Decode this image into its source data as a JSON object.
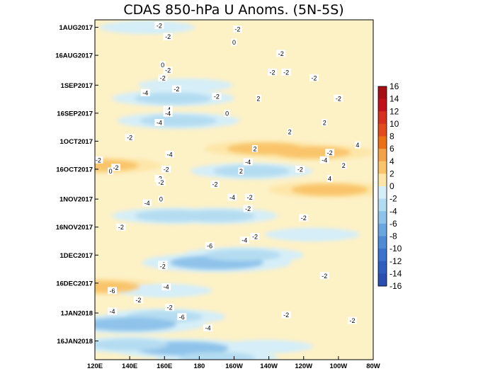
{
  "chart_data": {
    "type": "heatmap",
    "title": "CDAS 850-hPa U Anoms. (5N-5S)",
    "x_ticks": [
      "120E",
      "140E",
      "160E",
      "180",
      "160W",
      "140W",
      "120W",
      "100W",
      "80W"
    ],
    "x_range_lon": [
      120,
      280
    ],
    "y_ticks": [
      "1AUG2017",
      "16AUG2017",
      "1SEP2017",
      "16SEP2017",
      "1OCT2017",
      "16OCT2017",
      "1NOV2017",
      "16NOV2017",
      "1DEC2017",
      "16DEC2017",
      "1JAN2018",
      "16JAN2018"
    ],
    "y_range": [
      "2017-07-28",
      "2018-01-26"
    ],
    "colorbar": {
      "levels": [
        16,
        14,
        12,
        10,
        8,
        6,
        4,
        2,
        0,
        -2,
        -4,
        -6,
        -8,
        -10,
        -12,
        -14,
        -16
      ],
      "colors": {
        "16": "#a50f15",
        "14": "#c1121b",
        "12": "#d7301f",
        "10": "#e34a1c",
        "8": "#ec7014",
        "6": "#f4a24a",
        "4": "#f9c46a",
        "2": "#fde6a8",
        "-2": "#d6eef8",
        "-4": "#b4dcf1",
        "-6": "#8fc3ea",
        "-8": "#6aa6e0",
        "-10": "#4e8ad6",
        "-12": "#3b72cb",
        "-14": "#2f5fbe",
        "-16": "#2a4fb0"
      }
    },
    "anomaly_features": [
      {
        "lon": 150,
        "date": "2017-08-01",
        "value": -2
      },
      {
        "lon": 172,
        "date": "2017-09-01",
        "value": -2
      },
      {
        "lon": 165,
        "date": "2017-09-08",
        "value": -4
      },
      {
        "lon": 168,
        "date": "2017-09-20",
        "value": -4
      },
      {
        "lon": 218,
        "date": "2017-10-05",
        "value": 4
      },
      {
        "lon": 245,
        "date": "2017-10-07",
        "value": 4
      },
      {
        "lon": 123,
        "date": "2017-10-14",
        "value": 4
      },
      {
        "lon": 210,
        "date": "2017-10-17",
        "value": -4
      },
      {
        "lon": 255,
        "date": "2017-10-27",
        "value": 4
      },
      {
        "lon": 165,
        "date": "2017-11-10",
        "value": -4
      },
      {
        "lon": 190,
        "date": "2017-11-10",
        "value": -4
      },
      {
        "lon": 245,
        "date": "2017-11-20",
        "value": -2
      },
      {
        "lon": 190,
        "date": "2017-12-05",
        "value": -6
      },
      {
        "lon": 205,
        "date": "2017-12-01",
        "value": -4
      },
      {
        "lon": 124,
        "date": "2017-12-18",
        "value": 4
      },
      {
        "lon": 160,
        "date": "2017-12-20",
        "value": -2
      },
      {
        "lon": 160,
        "date": "2018-01-03",
        "value": -4
      },
      {
        "lon": 140,
        "date": "2018-01-07",
        "value": -6
      },
      {
        "lon": 170,
        "date": "2018-01-20",
        "value": -6
      },
      {
        "lon": 140,
        "date": "2018-01-18",
        "value": -4
      },
      {
        "lon": 190,
        "date": "2018-01-25",
        "value": -4
      },
      {
        "lon": 218,
        "date": "2018-01-19",
        "value": -2
      }
    ],
    "contour_labels": [
      {
        "text": "-2",
        "lon": 157,
        "date": "2017-07-31"
      },
      {
        "text": "-2",
        "lon": 202,
        "date": "2017-08-02"
      },
      {
        "text": "-2",
        "lon": 162,
        "date": "2017-08-06"
      },
      {
        "text": "0",
        "lon": 200,
        "date": "2017-08-09"
      },
      {
        "text": "-2",
        "lon": 227,
        "date": "2017-08-15"
      },
      {
        "text": "0",
        "lon": 159,
        "date": "2017-08-21"
      },
      {
        "text": "-2",
        "lon": 162,
        "date": "2017-08-24"
      },
      {
        "text": "-2",
        "lon": 230,
        "date": "2017-08-25"
      },
      {
        "text": "-2",
        "lon": 246,
        "date": "2017-08-28"
      },
      {
        "text": "-2",
        "lon": 222,
        "date": "2017-08-25"
      },
      {
        "text": "-2",
        "lon": 159,
        "date": "2017-08-28"
      },
      {
        "text": "-2",
        "lon": 167,
        "date": "2017-09-03"
      },
      {
        "text": "-4",
        "lon": 149,
        "date": "2017-09-05"
      },
      {
        "text": "-2",
        "lon": 190,
        "date": "2017-09-07"
      },
      {
        "text": "2",
        "lon": 214,
        "date": "2017-09-08"
      },
      {
        "text": "-2",
        "lon": 260,
        "date": "2017-09-08"
      },
      {
        "text": "-4",
        "lon": 162,
        "date": "2017-09-14"
      },
      {
        "text": "-4",
        "lon": 162,
        "date": "2017-09-16"
      },
      {
        "text": "0",
        "lon": 196,
        "date": "2017-09-16"
      },
      {
        "text": "-4",
        "lon": 157,
        "date": "2017-09-21"
      },
      {
        "text": "2",
        "lon": 252,
        "date": "2017-09-21"
      },
      {
        "text": "2",
        "lon": 232,
        "date": "2017-09-26"
      },
      {
        "text": "-2",
        "lon": 140,
        "date": "2017-09-29"
      },
      {
        "text": "4",
        "lon": 271,
        "date": "2017-10-03"
      },
      {
        "text": "2",
        "lon": 212,
        "date": "2017-10-05"
      },
      {
        "text": "-4",
        "lon": 163,
        "date": "2017-10-08"
      },
      {
        "text": "-2",
        "lon": 255,
        "date": "2017-10-07"
      },
      {
        "text": "-2",
        "lon": 122,
        "date": "2017-10-11"
      },
      {
        "text": "2",
        "lon": 204,
        "date": "2017-10-17"
      },
      {
        "text": "-4",
        "lon": 208,
        "date": "2017-10-12"
      },
      {
        "text": "-4",
        "lon": 252,
        "date": "2017-10-11"
      },
      {
        "text": "-2",
        "lon": 132,
        "date": "2017-10-15"
      },
      {
        "text": "0",
        "lon": 129,
        "date": "2017-10-17"
      },
      {
        "text": "-2",
        "lon": 161,
        "date": "2017-10-16"
      },
      {
        "text": "-2",
        "lon": 238,
        "date": "2017-10-16"
      },
      {
        "text": "2",
        "lon": 263,
        "date": "2017-10-14"
      },
      {
        "text": "-2",
        "lon": 157,
        "date": "2017-10-21"
      },
      {
        "text": "-2",
        "lon": 158,
        "date": "2017-10-23"
      },
      {
        "text": "-2",
        "lon": 189,
        "date": "2017-10-24"
      },
      {
        "text": "4",
        "lon": 255,
        "date": "2017-10-21"
      },
      {
        "text": "-4",
        "lon": 199,
        "date": "2017-10-31"
      },
      {
        "text": "-2",
        "lon": 209,
        "date": "2017-10-31"
      },
      {
        "text": "-4",
        "lon": 150,
        "date": "2017-11-03"
      },
      {
        "text": "0",
        "lon": 158,
        "date": "2017-11-01"
      },
      {
        "text": "-2",
        "lon": 208,
        "date": "2017-11-06"
      },
      {
        "text": "-2",
        "lon": 135,
        "date": "2017-11-16"
      },
      {
        "text": "-2",
        "lon": 240,
        "date": "2017-11-11"
      },
      {
        "text": "-6",
        "lon": 186,
        "date": "2017-11-26"
      },
      {
        "text": "-4",
        "lon": 206,
        "date": "2017-11-23"
      },
      {
        "text": "-2",
        "lon": 212,
        "date": "2017-11-21"
      },
      {
        "text": "-2",
        "lon": 159,
        "date": "2017-12-06"
      },
      {
        "text": "-2",
        "lon": 159,
        "date": "2017-12-07"
      },
      {
        "text": "-2",
        "lon": 252,
        "date": "2017-12-12"
      },
      {
        "text": "-6",
        "lon": 130,
        "date": "2017-12-20"
      },
      {
        "text": "-4",
        "lon": 161,
        "date": "2017-12-18"
      },
      {
        "text": "-2",
        "lon": 145,
        "date": "2017-12-25"
      },
      {
        "text": "-4",
        "lon": 130,
        "date": "2017-12-31"
      },
      {
        "text": "-2",
        "lon": 163,
        "date": "2017-12-29"
      },
      {
        "text": "-6",
        "lon": 170,
        "date": "2018-01-03"
      },
      {
        "text": "-4",
        "lon": 185,
        "date": "2018-01-09"
      },
      {
        "text": "-2",
        "lon": 230,
        "date": "2018-01-02"
      },
      {
        "text": "-2",
        "lon": 268,
        "date": "2018-01-05"
      }
    ]
  }
}
